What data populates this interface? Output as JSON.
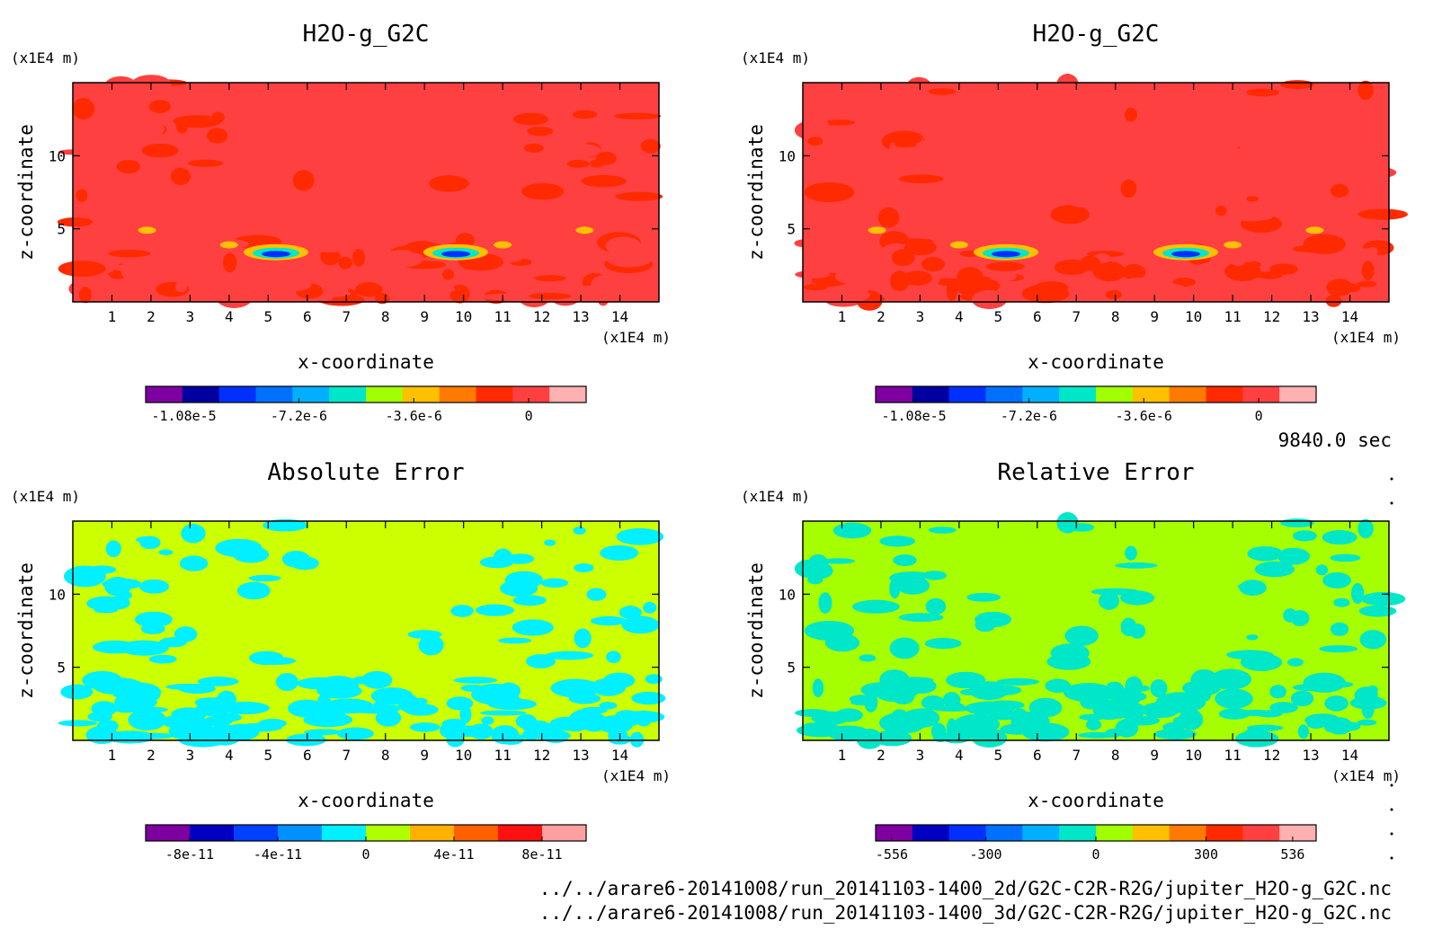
{
  "panels": [
    {
      "title": "H2O-g_G2C",
      "unit_top": "(x1E4 m)",
      "unit_right": "(x1E4 m)",
      "xlabel": "x-coordinate",
      "ylabel": "z-coordinate",
      "background_color": "#ff4040",
      "colorbar": {
        "colors": [
          "#7f00a0",
          "#0000a0",
          "#0030ff",
          "#0070ff",
          "#00b0ff",
          "#00e6c8",
          "#a0ff00",
          "#ffc000",
          "#ff7a00",
          "#ff2a00",
          "#ff4040",
          "#ffb0b0"
        ],
        "tick_labels": [
          "-1.08e-5",
          "-7.2e-6",
          "-3.6e-6",
          "0"
        ]
      }
    },
    {
      "title": "H2O-g_G2C",
      "unit_top": "(x1E4 m)",
      "unit_right": "(x1E4 m)",
      "xlabel": "x-coordinate",
      "ylabel": "z-coordinate",
      "background_color": "#ff4040",
      "colorbar": {
        "colors": [
          "#7f00a0",
          "#0000a0",
          "#0030ff",
          "#0070ff",
          "#00b0ff",
          "#00e6c8",
          "#a0ff00",
          "#ffc000",
          "#ff7a00",
          "#ff2a00",
          "#ff4040",
          "#ffb0b0"
        ],
        "tick_labels": [
          "-1.08e-5",
          "-7.2e-6",
          "-3.6e-6",
          "0"
        ]
      }
    },
    {
      "title": "Absolute Error",
      "unit_top": "(x1E4 m)",
      "unit_right": "(x1E4 m)",
      "xlabel": "x-coordinate",
      "ylabel": "z-coordinate",
      "background_color": "#ccff00",
      "colorbar": {
        "colors": [
          "#7f00a0",
          "#0000c0",
          "#0040ff",
          "#0090ff",
          "#00f0ff",
          "#b0ff00",
          "#ffb000",
          "#ff6000",
          "#ff1010",
          "#ffa0a0"
        ],
        "tick_labels": [
          "-8e-11",
          "-4e-11",
          "0",
          "4e-11",
          "8e-11"
        ]
      }
    },
    {
      "title": "Relative Error",
      "unit_top": "(x1E4 m)",
      "unit_right": "(x1E4 m)",
      "xlabel": "x-coordinate",
      "ylabel": "z-coordinate",
      "background_color": "#a6ff00",
      "colorbar": {
        "colors": [
          "#7f00a0",
          "#0000c0",
          "#0030ff",
          "#0070ff",
          "#00b0ff",
          "#00e6c8",
          "#a0ff00",
          "#ffc000",
          "#ff7a00",
          "#ff2a00",
          "#ff4040",
          "#ffb0b0"
        ],
        "tick_labels": [
          "-556",
          "-300",
          "0",
          "300",
          "536"
        ]
      }
    }
  ],
  "time_label": "9840.0 sec",
  "footer": [
    "../../arare6-20141008/run_20141103-1400_2d/G2C-C2R-R2G/jupiter_H2O-g_G2C.nc",
    "../../arare6-20141008/run_20141103-1400_3d/G2C-C2R-R2G/jupiter_H2O-g_G2C.nc"
  ],
  "chart_data": [
    {
      "type": "heatmap",
      "title": "H2O-g_G2C",
      "xlabel": "x-coordinate",
      "ylabel": "z-coordinate",
      "x_ticks": [
        1,
        2,
        3,
        4,
        5,
        6,
        7,
        8,
        9,
        10,
        11,
        12,
        13,
        14
      ],
      "y_ticks": [
        5,
        10
      ],
      "xlim": [
        0,
        15
      ],
      "ylim": [
        0,
        15
      ],
      "colorbar_ticks": [
        -1.08e-05,
        -7.2e-06,
        -3.6e-06,
        0
      ]
    },
    {
      "type": "heatmap",
      "title": "H2O-g_G2C",
      "xlabel": "x-coordinate",
      "ylabel": "z-coordinate",
      "x_ticks": [
        1,
        2,
        3,
        4,
        5,
        6,
        7,
        8,
        9,
        10,
        11,
        12,
        13,
        14
      ],
      "y_ticks": [
        5,
        10
      ],
      "xlim": [
        0,
        15
      ],
      "ylim": [
        0,
        15
      ],
      "colorbar_ticks": [
        -1.08e-05,
        -7.2e-06,
        -3.6e-06,
        0
      ]
    },
    {
      "type": "heatmap",
      "title": "Absolute Error",
      "xlabel": "x-coordinate",
      "ylabel": "z-coordinate",
      "x_ticks": [
        1,
        2,
        3,
        4,
        5,
        6,
        7,
        8,
        9,
        10,
        11,
        12,
        13,
        14
      ],
      "y_ticks": [
        5,
        10
      ],
      "xlim": [
        0,
        15
      ],
      "ylim": [
        0,
        15
      ],
      "colorbar_ticks": [
        -8e-11,
        -4e-11,
        0,
        4e-11,
        8e-11
      ]
    },
    {
      "type": "heatmap",
      "title": "Relative Error",
      "xlabel": "x-coordinate",
      "ylabel": "z-coordinate",
      "x_ticks": [
        1,
        2,
        3,
        4,
        5,
        6,
        7,
        8,
        9,
        10,
        11,
        12,
        13,
        14
      ],
      "y_ticks": [
        5,
        10
      ],
      "xlim": [
        0,
        15
      ],
      "ylim": [
        0,
        15
      ],
      "colorbar_ticks": [
        -556,
        -300,
        0,
        300,
        536
      ]
    }
  ]
}
